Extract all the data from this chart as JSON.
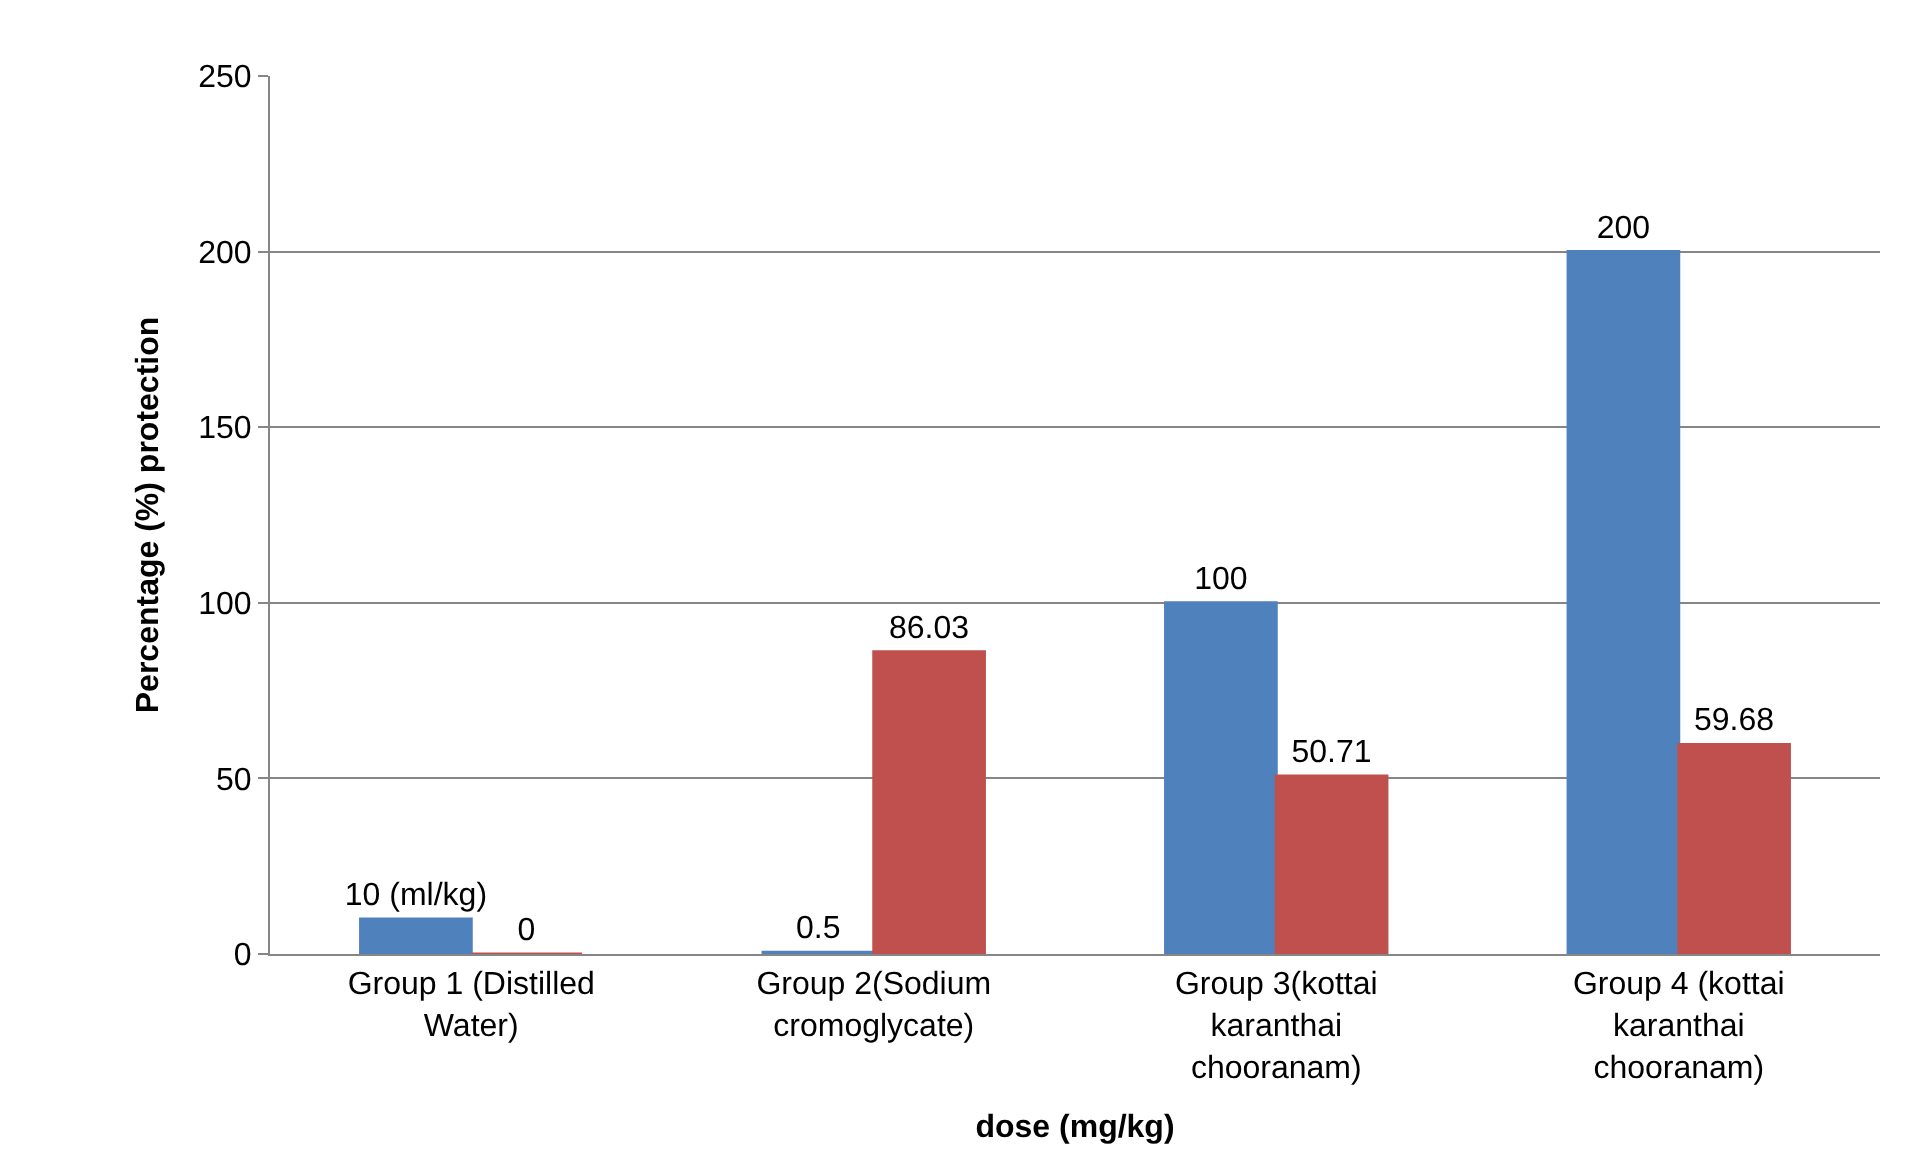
{
  "chart_data": {
    "type": "bar",
    "xlabel": "dose (mg/kg)",
    "ylabel": "Percentage (%) protection",
    "categories": [
      "Group 1 (Distilled Water)",
      "Group 2(Sodium cromoglycate)",
      "Group 3(kottai karanthai chooranam)",
      "Group 4 (kottai karanthai chooranam)"
    ],
    "series": [
      {
        "color": "#4f81bd",
        "values": [
          10,
          0.5,
          100,
          200
        ],
        "value_labels": [
          "10 (ml/kg)",
          "0.5",
          "100",
          "200"
        ]
      },
      {
        "color": "#c0504d",
        "values": [
          0,
          86.03,
          50.71,
          59.68
        ],
        "value_labels": [
          "0",
          "86.03",
          "50.71",
          "59.68"
        ]
      }
    ],
    "ylim": [
      0,
      250
    ],
    "yticks": [
      0,
      50,
      100,
      150,
      200,
      250
    ],
    "grid": "y",
    "legend": false
  }
}
